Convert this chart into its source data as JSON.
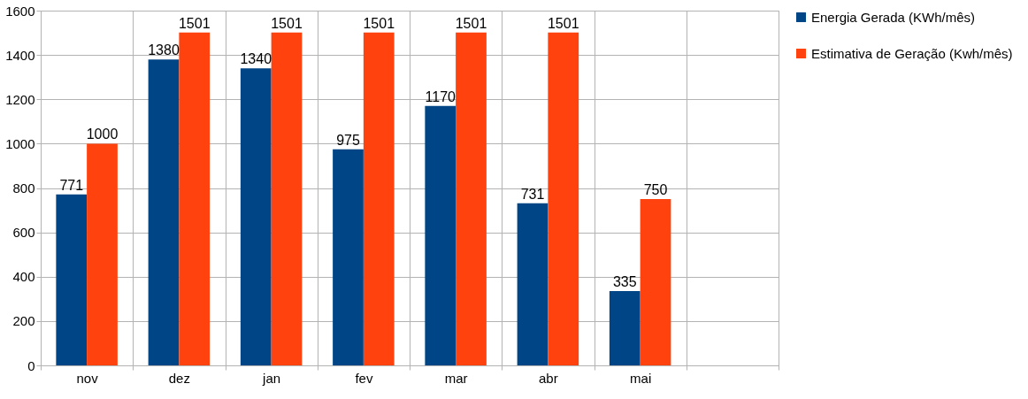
{
  "chart_data": {
    "type": "bar",
    "categories": [
      "nov",
      "dez",
      "jan",
      "fev",
      "mar",
      "abr",
      "mai",
      null
    ],
    "series": [
      {
        "name": "Energia Gerada (KWh/mês)",
        "color": "#004586",
        "values": [
          771,
          1380,
          1340,
          975,
          1170,
          731,
          335,
          null
        ]
      },
      {
        "name": "Estimativa de Geração (Kwh/mês)",
        "color": "#ff420e",
        "values": [
          1000,
          1501,
          1501,
          1501,
          1501,
          1501,
          750,
          null
        ]
      }
    ],
    "ylim": [
      0,
      1600
    ],
    "yticks": [
      0,
      200,
      400,
      600,
      800,
      1000,
      1200,
      1400,
      1600
    ],
    "grid": true,
    "legend": "right",
    "data_labels": true
  }
}
